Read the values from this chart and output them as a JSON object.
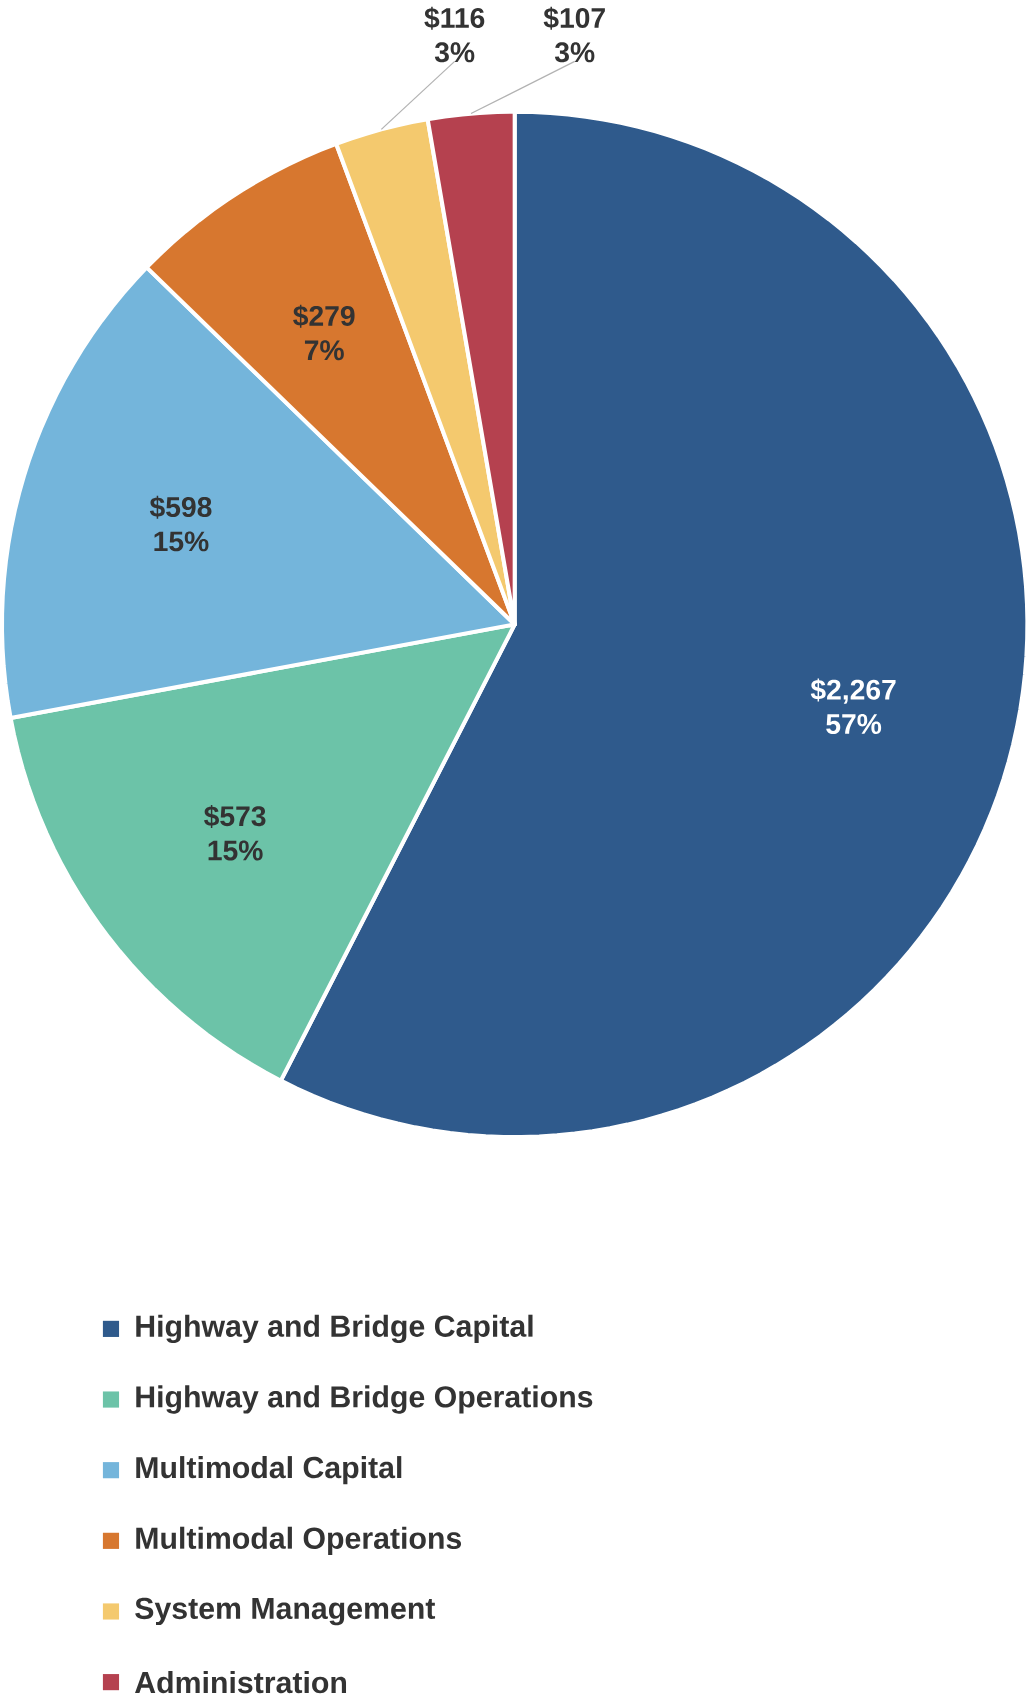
{
  "chart_data": {
    "type": "pie",
    "categories": [
      "Highway and Bridge Capital",
      "Highway and Bridge Operations",
      "Multimodal Capital",
      "Multimodal Operations",
      "System Management",
      "Administration"
    ],
    "values": [
      2267,
      573,
      598,
      279,
      116,
      107
    ],
    "colors": [
      "#2f5a8c",
      "#6cc3a8",
      "#74b5db",
      "#d7772f",
      "#f4c96e",
      "#b5414f"
    ],
    "value_labels": [
      "$2,267 57%",
      "$573 15%",
      "$598 15%",
      "$279 7%",
      "$116 3%",
      "$107 3%"
    ],
    "legend": "bottom"
  }
}
